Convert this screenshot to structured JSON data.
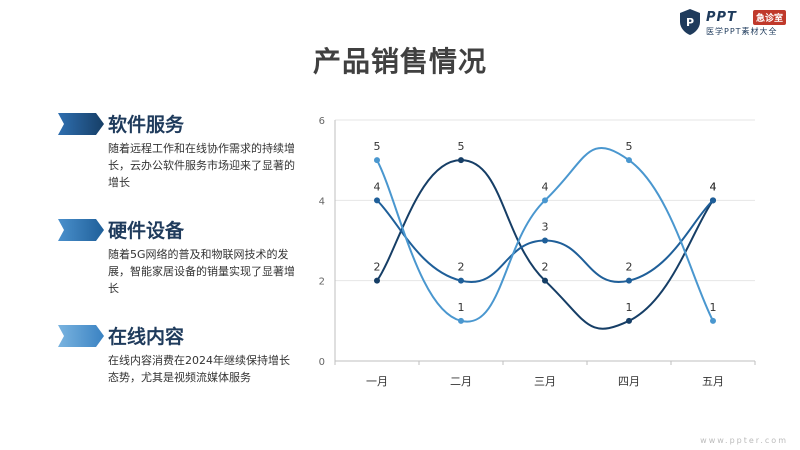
{
  "page": {
    "title": "产品销售情况",
    "logo": {
      "brand": "PPT",
      "tag": "急诊室",
      "sub": "医学PPT素材大全"
    },
    "footer_url": "www.ppter.com"
  },
  "sections": [
    {
      "heading": "软件服务",
      "body": "随着远程工作和在线协作需求的持续增长，云办公软件服务市场迎来了显著的增长",
      "color": "#1f4e8c"
    },
    {
      "heading": "硬件设备",
      "body": "随着5G网络的普及和物联网技术的发展，智能家居设备的销量实现了显著增长",
      "color": "#2a6db5"
    },
    {
      "heading": "在线内容",
      "body": "在线内容消费在2024年继续保持增长态势，尤其是视频流媒体服务",
      "color": "#4a90cc"
    }
  ],
  "chart_data": {
    "type": "line",
    "smooth": true,
    "categories": [
      "一月",
      "二月",
      "三月",
      "四月",
      "五月"
    ],
    "ylim": [
      0,
      6
    ],
    "yticks": [
      0,
      2,
      4,
      6
    ],
    "grid": true,
    "series": [
      {
        "values": [
          2,
          5,
          2,
          1,
          4
        ],
        "color": "#163e66"
      },
      {
        "values": [
          4,
          2,
          3,
          2,
          4
        ],
        "color": "#1f5f99"
      },
      {
        "values": [
          5,
          1,
          4,
          5,
          1
        ],
        "color": "#4a97cf"
      }
    ]
  }
}
